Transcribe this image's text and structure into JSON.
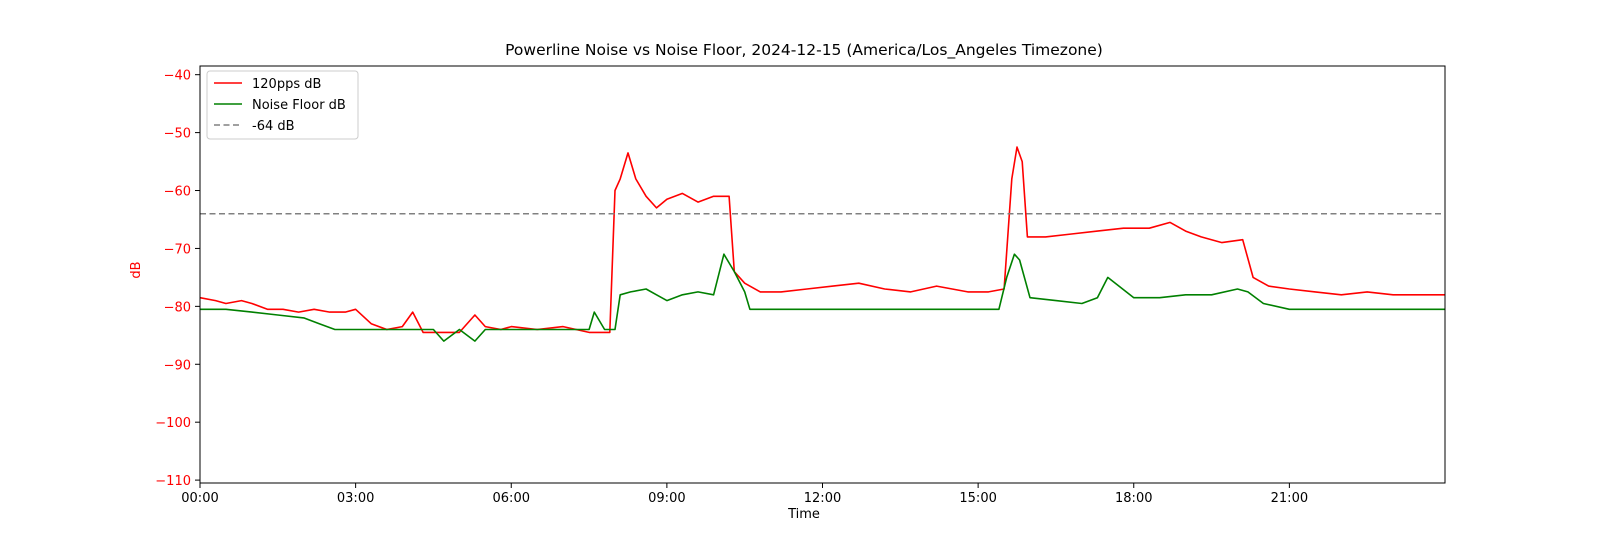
{
  "chart_data": {
    "type": "line",
    "title": "Powerline Noise vs Noise Floor, 2024-12-15 (America/Los_Angeles Timezone)",
    "xlabel": "Time",
    "ylabel": "dB",
    "xlim": [
      0,
      24
    ],
    "ylim": [
      -110.5,
      -38.5
    ],
    "x_ticks": [
      {
        "value": 0,
        "label": "00:00"
      },
      {
        "value": 3,
        "label": "03:00"
      },
      {
        "value": 6,
        "label": "06:00"
      },
      {
        "value": 9,
        "label": "09:00"
      },
      {
        "value": 12,
        "label": "12:00"
      },
      {
        "value": 15,
        "label": "15:00"
      },
      {
        "value": 18,
        "label": "18:00"
      },
      {
        "value": 21,
        "label": "21:00"
      }
    ],
    "y_ticks": [
      {
        "value": -40,
        "label": "−40"
      },
      {
        "value": -50,
        "label": "−50"
      },
      {
        "value": -60,
        "label": "−60"
      },
      {
        "value": -70,
        "label": "−70"
      },
      {
        "value": -80,
        "label": "−80"
      },
      {
        "value": -90,
        "label": "−90"
      },
      {
        "value": -100,
        "label": "−100"
      },
      {
        "value": -110,
        "label": "−110"
      }
    ],
    "grid": false,
    "legend_position": "top-left",
    "y_axis_color": "#ff0000",
    "series": [
      {
        "name": "120pps dB",
        "color": "#ff0000",
        "style": "solid",
        "x": [
          0.0,
          0.3,
          0.5,
          0.8,
          1.0,
          1.3,
          1.6,
          1.9,
          2.2,
          2.5,
          2.8,
          3.0,
          3.3,
          3.6,
          3.9,
          4.1,
          4.3,
          4.5,
          5.0,
          5.3,
          5.5,
          5.8,
          6.0,
          6.5,
          7.0,
          7.5,
          7.9,
          8.0,
          8.1,
          8.25,
          8.4,
          8.6,
          8.8,
          9.0,
          9.3,
          9.6,
          9.9,
          10.2,
          10.3,
          10.5,
          10.8,
          11.2,
          11.7,
          12.2,
          12.7,
          13.2,
          13.7,
          14.2,
          14.5,
          14.8,
          15.2,
          15.5,
          15.65,
          15.75,
          15.85,
          15.95,
          16.3,
          16.8,
          17.3,
          17.8,
          18.3,
          18.7,
          19.0,
          19.3,
          19.7,
          20.1,
          20.3,
          20.6,
          21.0,
          21.5,
          22.0,
          22.5,
          23.0,
          23.5,
          24.0
        ],
        "y": [
          -78.5,
          -79,
          -79.5,
          -79,
          -79.5,
          -80.5,
          -80.5,
          -81,
          -80.5,
          -81,
          -81,
          -80.5,
          -83,
          -84,
          -83.5,
          -81,
          -84.5,
          -84.5,
          -84.5,
          -81.5,
          -83.5,
          -84,
          -83.5,
          -84,
          -83.5,
          -84.5,
          -84.5,
          -60,
          -58,
          -53.5,
          -58,
          -61,
          -63,
          -61.5,
          -60.5,
          -62,
          -61,
          -61,
          -74,
          -76,
          -77.5,
          -77.5,
          -77,
          -76.5,
          -76,
          -77,
          -77.5,
          -76.5,
          -77,
          -77.5,
          -77.5,
          -77,
          -58,
          -52.5,
          -55,
          -68,
          -68,
          -67.5,
          -67,
          -66.5,
          -66.5,
          -65.5,
          -67,
          -68,
          -69,
          -68.5,
          -75,
          -76.5,
          -77,
          -77.5,
          -78,
          -77.5,
          -78,
          -78,
          -78
        ]
      },
      {
        "name": "Noise Floor dB",
        "color": "#008000",
        "style": "solid",
        "x": [
          0.0,
          0.5,
          1.0,
          1.5,
          2.0,
          2.3,
          2.6,
          3.0,
          3.5,
          4.0,
          4.5,
          4.7,
          5.0,
          5.3,
          5.5,
          6.0,
          6.5,
          7.0,
          7.5,
          7.6,
          7.8,
          8.0,
          8.1,
          8.3,
          8.6,
          8.8,
          9.0,
          9.3,
          9.6,
          9.9,
          10.1,
          10.3,
          10.5,
          10.6,
          11.0,
          11.5,
          12.0,
          12.5,
          13.0,
          13.5,
          14.0,
          14.5,
          15.0,
          15.4,
          15.55,
          15.7,
          15.8,
          16.0,
          16.5,
          17.0,
          17.3,
          17.5,
          18.0,
          18.5,
          19.0,
          19.5,
          20.0,
          20.2,
          20.5,
          21.0,
          21.5,
          22.0,
          22.5,
          23.0,
          23.5,
          24.0
        ],
        "y": [
          -80.5,
          -80.5,
          -81,
          -81.5,
          -82,
          -83,
          -84,
          -84,
          -84,
          -84,
          -84,
          -86,
          -84,
          -86,
          -84,
          -84,
          -84,
          -84,
          -84,
          -81,
          -84,
          -84,
          -78,
          -77.5,
          -77,
          -78,
          -79,
          -78,
          -77.5,
          -78,
          -71,
          -74,
          -77.5,
          -80.5,
          -80.5,
          -80.5,
          -80.5,
          -80.5,
          -80.5,
          -80.5,
          -80.5,
          -80.5,
          -80.5,
          -80.5,
          -75,
          -71,
          -72,
          -78.5,
          -79,
          -79.5,
          -78.5,
          -75,
          -78.5,
          -78.5,
          -78,
          -78,
          -77,
          -77.5,
          -79.5,
          -80.5,
          -80.5,
          -80.5,
          -80.5,
          -80.5,
          -80.5,
          -80.5
        ]
      },
      {
        "name": "-64 dB",
        "color": "#808080",
        "style": "dashed",
        "x": [
          0,
          24
        ],
        "y": [
          -64,
          -64
        ]
      }
    ]
  }
}
